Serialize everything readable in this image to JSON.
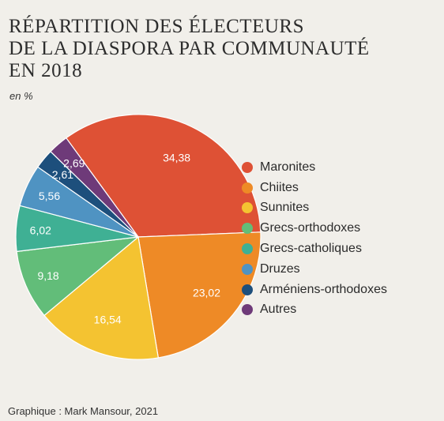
{
  "header": {
    "title_lines": [
      "RÉPARTITION DES ÉLECTEURS",
      "DE LA DIASPORA PAR COMMUNAUTÉ",
      "EN 2018"
    ],
    "unit": "en %"
  },
  "footer": {
    "credit": "Graphique : Mark Mansour, 2021"
  },
  "chart_data": {
    "type": "pie",
    "title": "RÉPARTITION DES ÉLECTEURS DE LA DIASPORA PAR COMMUNAUTÉ EN 2018",
    "unit": "en %",
    "legend_position": "right",
    "slices": [
      {
        "label": "Maronites",
        "value": 34.38,
        "display": "34,38",
        "color": "#de5135"
      },
      {
        "label": "Chiites",
        "value": 23.02,
        "display": "23,02",
        "color": "#ee8a26"
      },
      {
        "label": "Sunnites",
        "value": 16.54,
        "display": "16,54",
        "color": "#f4c331"
      },
      {
        "label": "Grecs-orthodoxes",
        "value": 9.18,
        "display": "9,18",
        "color": "#62bd79"
      },
      {
        "label": "Grecs-catholiques",
        "value": 6.02,
        "display": "6,02",
        "color": "#3fb094"
      },
      {
        "label": "Druzes",
        "value": 5.56,
        "display": "5,56",
        "color": "#4f93c2"
      },
      {
        "label": "Arméniens-orthodoxes",
        "value": 2.61,
        "display": "2,61",
        "color": "#1d4f7c"
      },
      {
        "label": "Autres",
        "value": 2.69,
        "display": "2,69",
        "color": "#6e3a79"
      }
    ]
  }
}
